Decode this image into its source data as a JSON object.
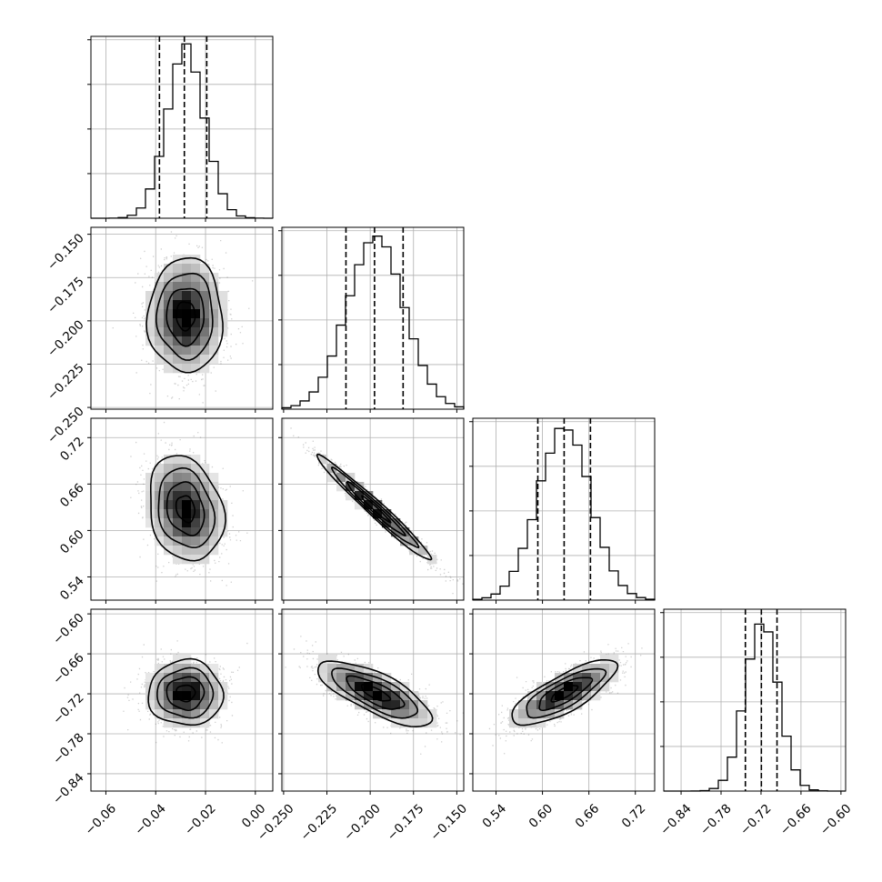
{
  "chart_data": {
    "type": "corner",
    "grid": true,
    "parameters": [
      {
        "mean": -0.028,
        "sd": 0.0075,
        "range": [
          -0.066,
          0.007
        ],
        "quantiles": [
          -0.0385,
          -0.0285,
          -0.0195
        ],
        "ticks": [
          -0.06,
          -0.04,
          -0.02,
          0.0
        ],
        "tick_labels": [
          "−0.06",
          "−0.04",
          "−0.02",
          "0.00"
        ]
      },
      {
        "mean": -0.197,
        "sd": 0.0165,
        "range": [
          -0.251,
          -0.146
        ],
        "quantiles": [
          -0.214,
          -0.1975,
          -0.181
        ],
        "ticks": [
          -0.25,
          -0.225,
          -0.2,
          -0.175,
          -0.15
        ],
        "tick_labels": [
          "−0.250",
          "−0.225",
          "−0.200",
          "−0.175",
          "−0.150"
        ]
      },
      {
        "mean": 0.628,
        "sd": 0.034,
        "range": [
          0.51,
          0.745
        ],
        "quantiles": [
          0.594,
          0.628,
          0.662
        ],
        "ticks": [
          0.54,
          0.6,
          0.66,
          0.72
        ],
        "tick_labels": [
          "0.54",
          "0.60",
          "0.66",
          "0.72"
        ]
      },
      {
        "mean": -0.719,
        "sd": 0.0245,
        "range": [
          -0.866,
          -0.593
        ],
        "quantiles": [
          -0.7435,
          -0.7195,
          -0.696
        ],
        "ticks": [
          -0.84,
          -0.78,
          -0.72,
          -0.66,
          -0.6
        ],
        "tick_labels": [
          "−0.84",
          "−0.78",
          "−0.72",
          "−0.66",
          "−0.60"
        ]
      }
    ],
    "correlations": [
      {
        "i": 1,
        "j": 0,
        "rho": 0.0
      },
      {
        "i": 2,
        "j": 0,
        "rho": -0.2
      },
      {
        "i": 2,
        "j": 1,
        "rho": -0.98
      },
      {
        "i": 3,
        "j": 0,
        "rho": 0.0
      },
      {
        "i": 3,
        "j": 1,
        "rho": -0.75
      },
      {
        "i": 3,
        "j": 2,
        "rho": 0.78
      }
    ],
    "histogram_bins": 20,
    "density_levels_sigma": [
      0.5,
      1.0,
      1.5,
      2.0
    ]
  }
}
